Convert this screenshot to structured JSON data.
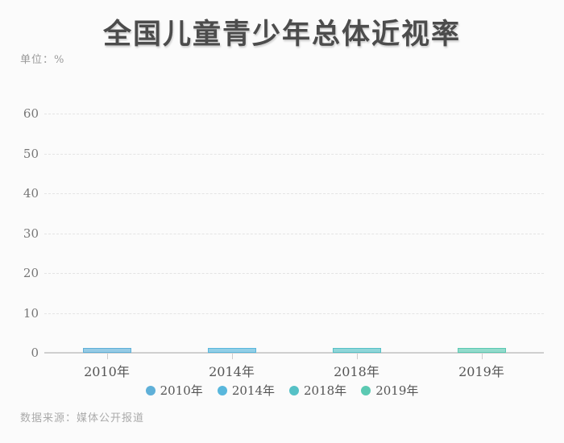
{
  "page": {
    "background": "#fbfbfb"
  },
  "header": {
    "title": "全国儿童青少年总体近视率",
    "unit_label": "单位：%"
  },
  "footer": {
    "source": "数据来源：媒体公开报道"
  },
  "legend": {
    "position": "bottom",
    "items": [
      {
        "label": "2010年",
        "color": "#5fb0d8"
      },
      {
        "label": "2014年",
        "color": "#59b7dc"
      },
      {
        "label": "2018年",
        "color": "#56c1c6"
      },
      {
        "label": "2019年",
        "color": "#5bc9b2"
      }
    ]
  },
  "chart_data": {
    "type": "bar",
    "title": "全国儿童青少年总体近视率",
    "categories": [
      "2010年",
      "2014年",
      "2018年",
      "2019年"
    ],
    "values": [
      1,
      1,
      1,
      1
    ],
    "series_colors": [
      "#5fb0d8",
      "#59b7dc",
      "#56c1c6",
      "#5bc9b2"
    ],
    "xlabel": "",
    "ylabel": "单位：%",
    "ylim": [
      0,
      60
    ],
    "y_ticks": [
      0,
      10,
      20,
      30,
      40,
      50,
      60
    ],
    "grid": "horizontal-dashed",
    "grid_color": "#e4e4e4",
    "axis_color": "#cfcfcf",
    "legend_position": "bottom"
  }
}
